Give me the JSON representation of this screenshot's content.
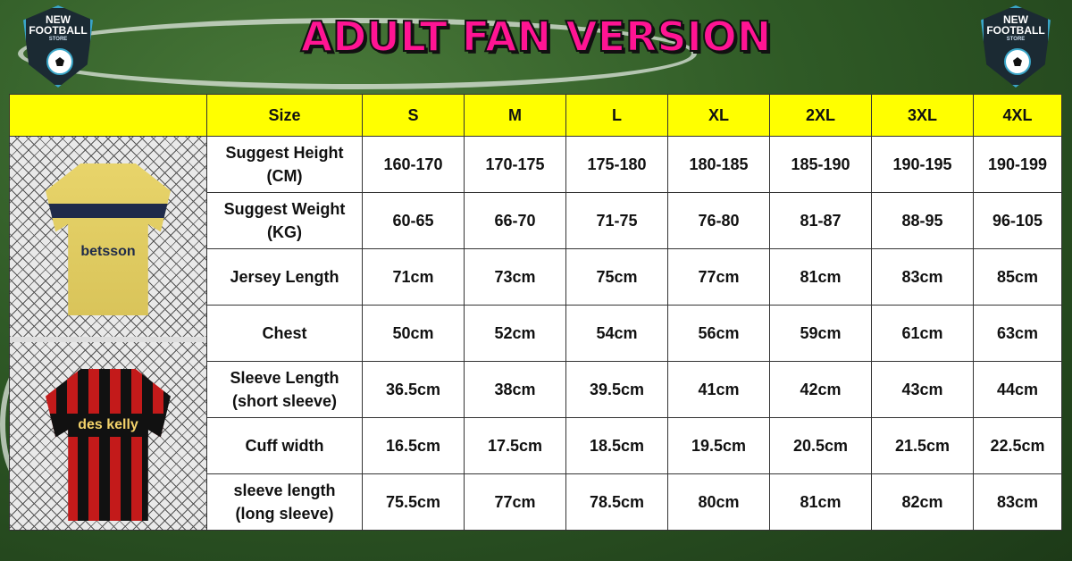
{
  "title": "ADULT FAN VERSION",
  "logo": {
    "line1": "NEW",
    "line2": "FOOTBALL",
    "line3": "STORE"
  },
  "jerseys": [
    {
      "sponsor": "betsson"
    },
    {
      "sponsor": "des kelly"
    }
  ],
  "colors": {
    "header": "#ffff00",
    "title": "#ff1493"
  },
  "table": {
    "size_label": "Size",
    "sizes": [
      "S",
      "M",
      "L",
      "XL",
      "2XL",
      "3XL",
      "4XL"
    ],
    "rows": [
      {
        "label": [
          "Suggest Height",
          "(CM)"
        ],
        "values": [
          "160-170",
          "170-175",
          "175-180",
          "180-185",
          "185-190",
          "190-195",
          "190-199"
        ]
      },
      {
        "label": [
          "Suggest Weight",
          "(KG)"
        ],
        "values": [
          "60-65",
          "66-70",
          "71-75",
          "76-80",
          "81-87",
          "88-95",
          "96-105"
        ]
      },
      {
        "label": [
          "Jersey Length"
        ],
        "values": [
          "71cm",
          "73cm",
          "75cm",
          "77cm",
          "81cm",
          "83cm",
          "85cm"
        ]
      },
      {
        "label": [
          "Chest"
        ],
        "values": [
          "50cm",
          "52cm",
          "54cm",
          "56cm",
          "59cm",
          "61cm",
          "63cm"
        ]
      },
      {
        "label": [
          "Sleeve Length",
          "(short sleeve)"
        ],
        "values": [
          "36.5cm",
          "38cm",
          "39.5cm",
          "41cm",
          "42cm",
          "43cm",
          "44cm"
        ]
      },
      {
        "label": [
          "Cuff width"
        ],
        "values": [
          "16.5cm",
          "17.5cm",
          "18.5cm",
          "19.5cm",
          "20.5cm",
          "21.5cm",
          "22.5cm"
        ]
      },
      {
        "label": [
          "sleeve length",
          "(long sleeve)"
        ],
        "values": [
          "75.5cm",
          "77cm",
          "78.5cm",
          "80cm",
          "81cm",
          "82cm",
          "83cm"
        ]
      }
    ]
  }
}
